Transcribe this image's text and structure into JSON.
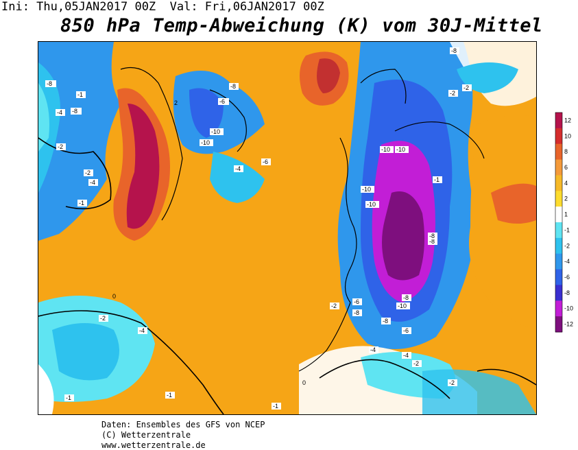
{
  "header": {
    "init_line": "Ini: Thu,05JAN2017 00Z  Val: Fri,06JAN2017 00Z",
    "title": "850 hPa Temp-Abweichung (K) vom 30J-Mittel"
  },
  "legend": {
    "ticks": [
      "12",
      "10",
      "8",
      "6",
      "4",
      "2",
      "1",
      "-1",
      "-2",
      "-4",
      "-6",
      "-8",
      "-10",
      "-12"
    ],
    "colors": [
      "#b5134c",
      "#d52d2d",
      "#e8642a",
      "#f49a3a",
      "#f6b928",
      "#fddc2e",
      "#ffffff",
      "#5fe4f2",
      "#2ec2ee",
      "#2f97ec",
      "#2f63e8",
      "#3a2fd0",
      "#c21ed6",
      "#7e0f7e"
    ]
  },
  "map": {
    "contour_labels": [
      "-8",
      "-8",
      "-1",
      "-4",
      "-6",
      "-8",
      "-2",
      "-2",
      "-4",
      "-10",
      "-10",
      "-4",
      "-6",
      "-2",
      "-8",
      "-10",
      "-10",
      "-10",
      "-10",
      "-8",
      "-6",
      "-8",
      "-10",
      "-8",
      "-6",
      "-4",
      "-2",
      "-2",
      "-1",
      "-1",
      "-1",
      "-2",
      "-4",
      "-2",
      "-4",
      "-8",
      "-1",
      "-2",
      "-1",
      "-8",
      "2",
      "0",
      "0"
    ]
  },
  "credits": {
    "line1": "Daten: Ensembles des GFS von NCEP",
    "line2": "(C) Wetterzentrale",
    "line3": "www.wetterzentrale.de"
  }
}
